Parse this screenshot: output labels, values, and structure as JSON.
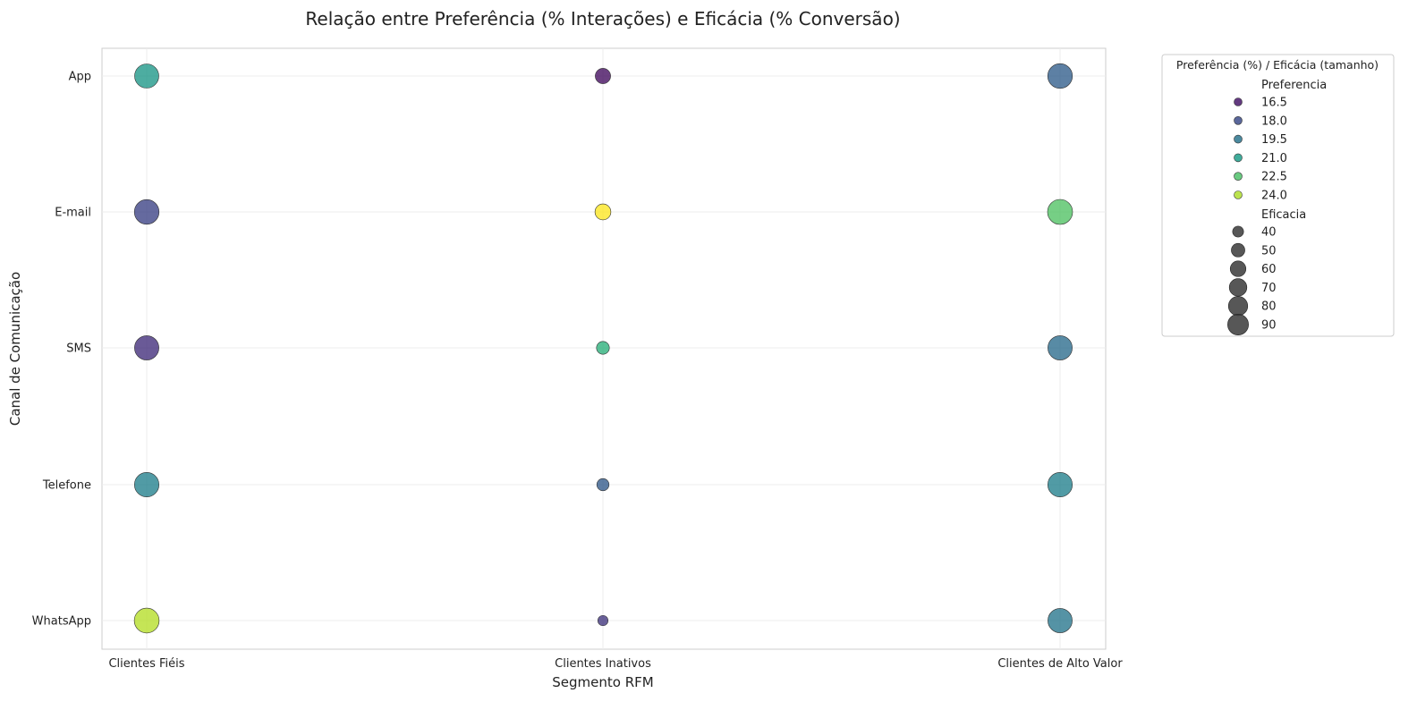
{
  "chart_data": {
    "type": "scatter",
    "title": "Relação entre Preferência (% Interações) e Eficácia (% Conversão)",
    "xlabel": "Segmento RFM",
    "ylabel": "Canal de Comunicação",
    "x_categories": [
      "Clientes Fiéis",
      "Clientes Inativos",
      "Clientes de Alto Valor"
    ],
    "y_categories": [
      "App",
      "E-mail",
      "SMS",
      "Telefone",
      "WhatsApp"
    ],
    "grid": true,
    "color_scale": "viridis",
    "color_range": [
      15.9,
      25.1
    ],
    "size_range": [
      32,
      93
    ],
    "points": [
      {
        "x": "Clientes Fiéis",
        "y": "App",
        "Preferencia": 20.8,
        "Eficacia": 88
      },
      {
        "x": "Clientes Fiéis",
        "y": "E-mail",
        "Preferencia": 17.8,
        "Eficacia": 91
      },
      {
        "x": "Clientes Fiéis",
        "y": "SMS",
        "Preferencia": 17.2,
        "Eficacia": 89
      },
      {
        "x": "Clientes Fiéis",
        "y": "Telefone",
        "Preferencia": 20.0,
        "Eficacia": 90
      },
      {
        "x": "Clientes Fiéis",
        "y": "WhatsApp",
        "Preferencia": 24.1,
        "Eficacia": 92
      },
      {
        "x": "Clientes Inativos",
        "y": "App",
        "Preferencia": 16.3,
        "Eficacia": 48
      },
      {
        "x": "Clientes Inativos",
        "y": "E-mail",
        "Preferencia": 25.1,
        "Eficacia": 50
      },
      {
        "x": "Clientes Inativos",
        "y": "SMS",
        "Preferencia": 21.8,
        "Eficacia": 40
      },
      {
        "x": "Clientes Inativos",
        "y": "Telefone",
        "Preferencia": 18.6,
        "Eficacia": 38
      },
      {
        "x": "Clientes Inativos",
        "y": "WhatsApp",
        "Preferencia": 17.4,
        "Eficacia": 33
      },
      {
        "x": "Clientes de Alto Valor",
        "y": "App",
        "Preferencia": 18.7,
        "Eficacia": 91
      },
      {
        "x": "Clientes de Alto Valor",
        "y": "E-mail",
        "Preferencia": 22.6,
        "Eficacia": 93
      },
      {
        "x": "Clientes de Alto Valor",
        "y": "SMS",
        "Preferencia": 19.2,
        "Eficacia": 89
      },
      {
        "x": "Clientes de Alto Valor",
        "y": "Telefone",
        "Preferencia": 20.0,
        "Eficacia": 90
      },
      {
        "x": "Clientes de Alto Valor",
        "y": "WhatsApp",
        "Preferencia": 19.6,
        "Eficacia": 89
      }
    ],
    "legend": {
      "placement": "outside-top-right",
      "title": "Preferência (%) / Eficácia (tamanho)",
      "hue_title": "Preferencia",
      "hue_items": [
        16.5,
        18.0,
        19.5,
        21.0,
        22.5,
        24.0
      ],
      "hue_labels": [
        "16.5",
        "18.0",
        "19.5",
        "21.0",
        "22.5",
        "24.0"
      ],
      "size_title": "Eficacia",
      "size_items": [
        40,
        50,
        60,
        70,
        80,
        90
      ],
      "size_labels": [
        "40",
        "50",
        "60",
        "70",
        "80",
        "90"
      ]
    }
  }
}
